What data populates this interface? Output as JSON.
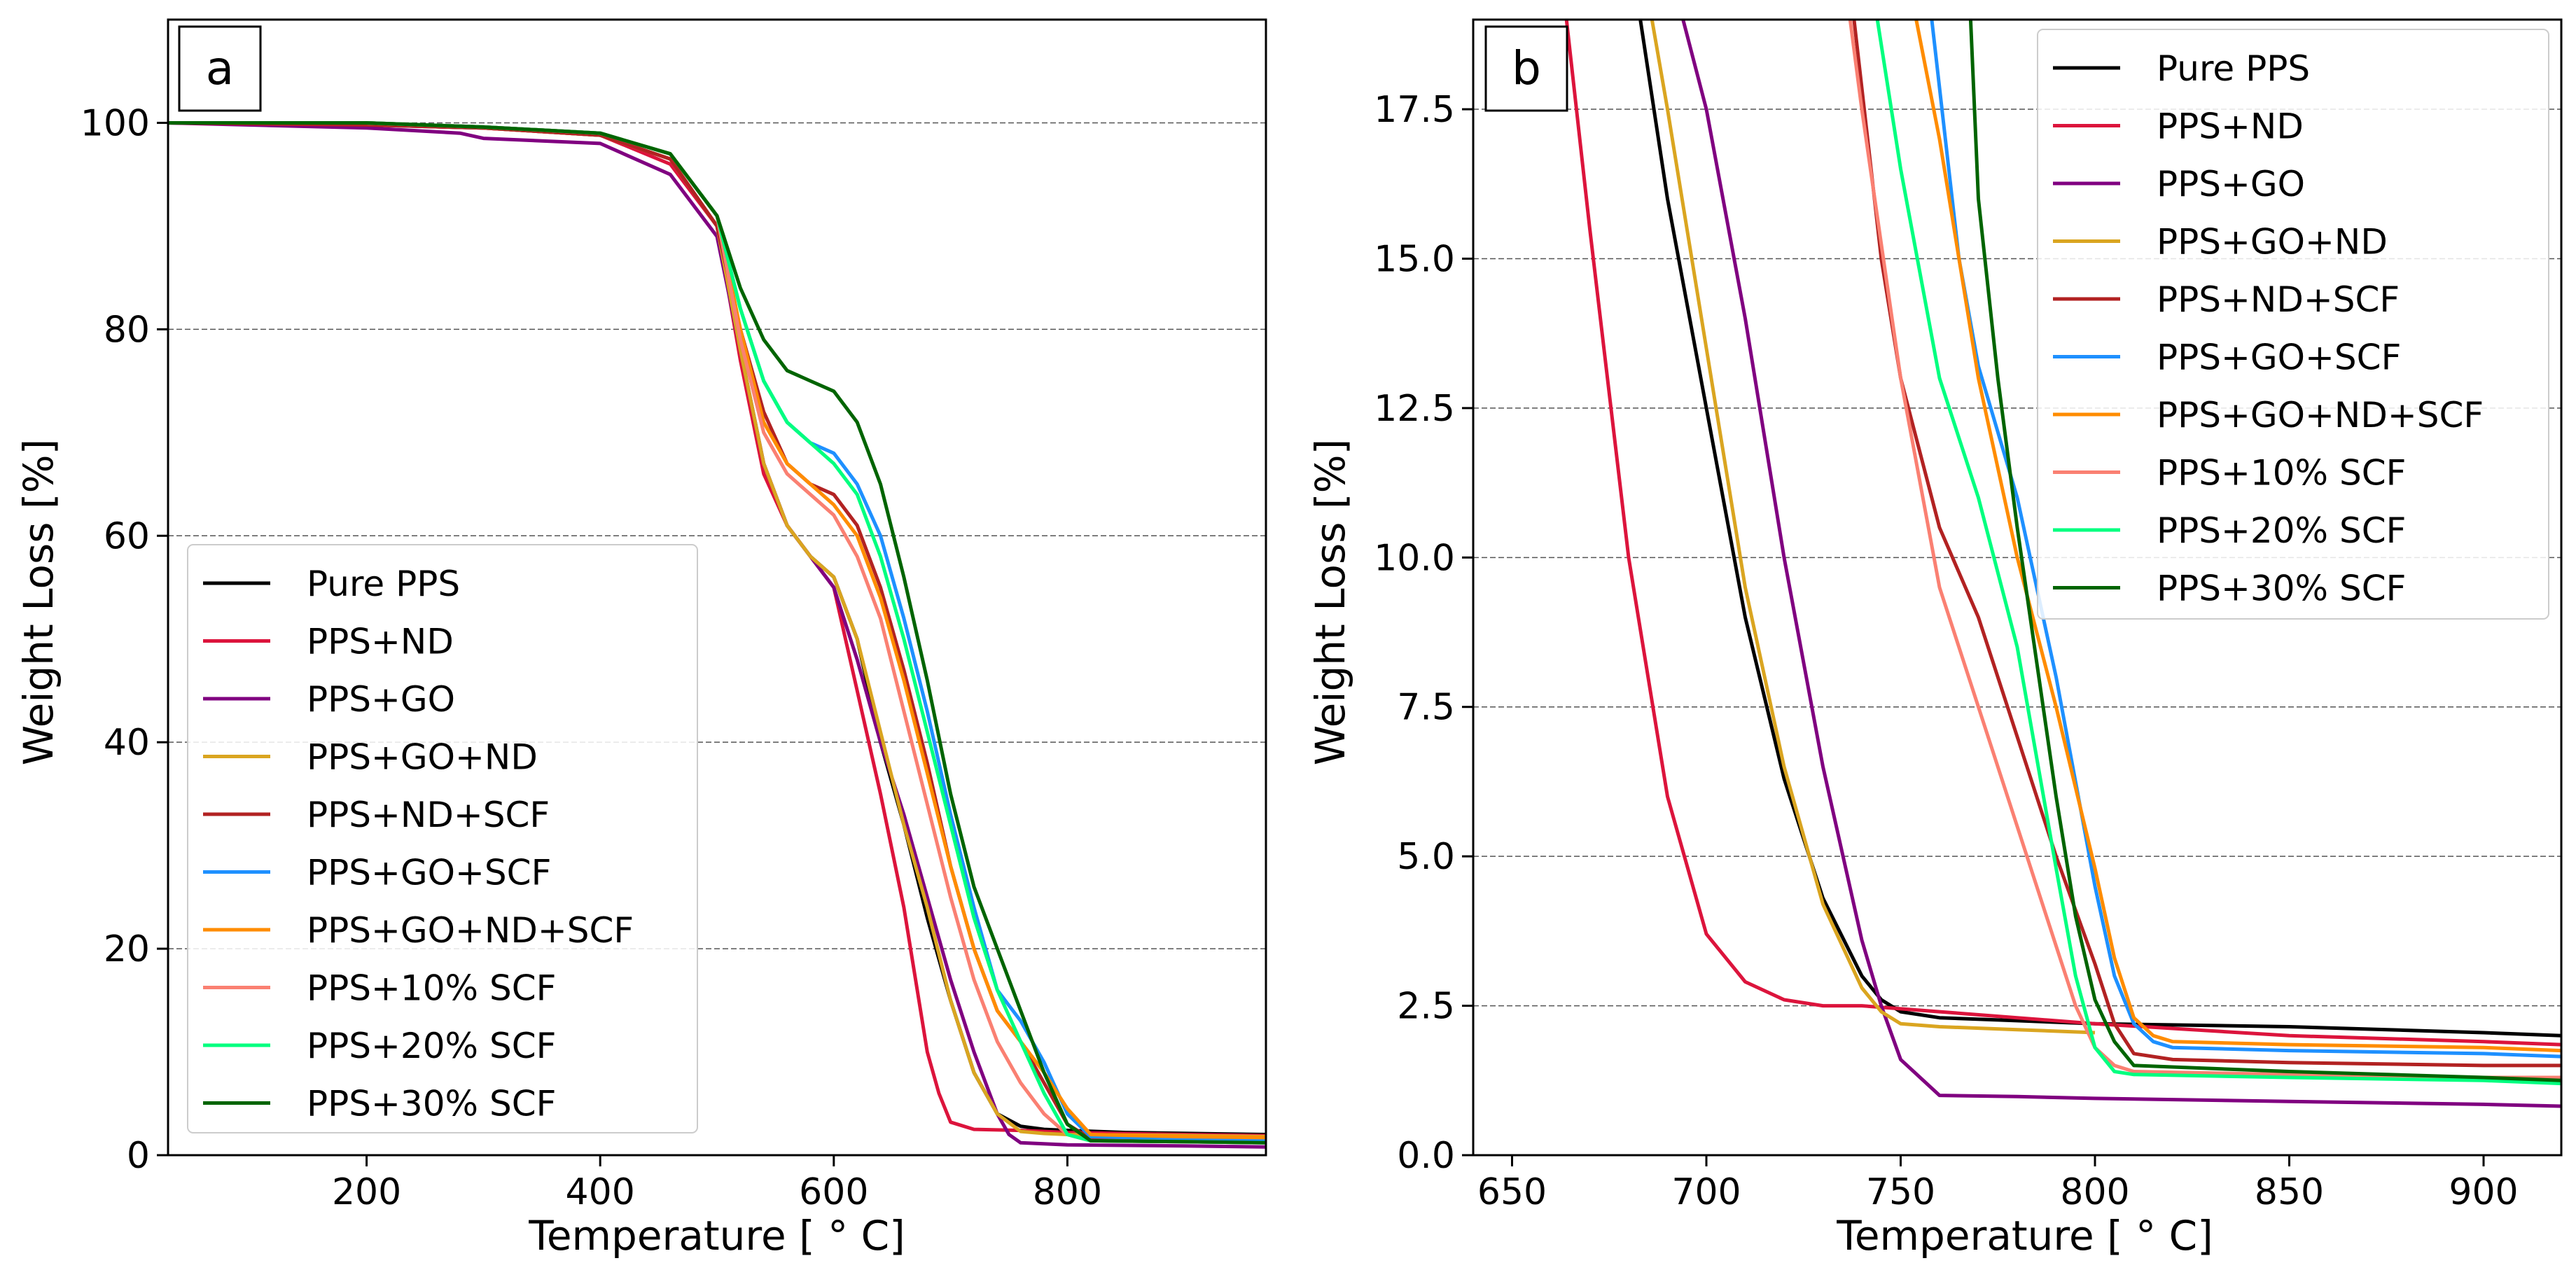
{
  "figure": {
    "colors": {
      "grid": "#555555",
      "frame": "#000000"
    }
  },
  "series_styles": [
    {
      "name": "Pure PPS",
      "color": "#000000"
    },
    {
      "name": "PPS+ND",
      "color": "#dc143c"
    },
    {
      "name": "PPS+GO",
      "color": "#800080"
    },
    {
      "name": "PPS+GO+ND",
      "color": "#daa520"
    },
    {
      "name": "PPS+ND+SCF",
      "color": "#b22222"
    },
    {
      "name": "PPS+GO+SCF",
      "color": "#1e90ff"
    },
    {
      "name": "PPS+GO+ND+SCF",
      "color": "#ff8c00"
    },
    {
      "name": "PPS+10% SCF",
      "color": "#fa8072"
    },
    {
      "name": "PPS+20% SCF",
      "color": "#00ff7f"
    },
    {
      "name": "PPS+30% SCF",
      "color": "#006400"
    }
  ],
  "chart_data": [
    {
      "type": "line",
      "panel_label": "a",
      "title": "",
      "xlabel": "Temperature [$^\\circ$C]",
      "xlabel_display": "Temperature [ ° C]",
      "ylabel": "Weight Loss [%]",
      "xlim": [
        30,
        970
      ],
      "ylim": [
        0,
        110
      ],
      "xticks": [
        200,
        400,
        600,
        800
      ],
      "xtick_labels": [
        "200",
        "400",
        "600",
        "800"
      ],
      "yticks": [
        0,
        20,
        40,
        60,
        80,
        100
      ],
      "ytick_labels": [
        "0",
        "20",
        "40",
        "60",
        "80",
        "100"
      ],
      "grid": "horizontal dashed",
      "legend_position": "lower-left",
      "legend": [
        "Pure PPS",
        "PPS+ND",
        "PPS+GO",
        "PPS+GO+ND",
        "PPS+ND+SCF",
        "PPS+GO+SCF",
        "PPS+GO+ND+SCF",
        "PPS+10% SCF",
        "PPS+20% SCF",
        "PPS+30% SCF"
      ],
      "series": [
        {
          "name": "Pure PPS",
          "x": [
            30,
            200,
            300,
            400,
            460,
            500,
            520,
            540,
            560,
            580,
            600,
            620,
            640,
            660,
            680,
            700,
            720,
            740,
            760,
            780,
            800,
            850,
            970
          ],
          "y": [
            100,
            99.8,
            99.5,
            98.8,
            96.5,
            90,
            78,
            67,
            61,
            58,
            56,
            50,
            40,
            32,
            23,
            15,
            8,
            4,
            2.8,
            2.5,
            2.4,
            2.2,
            2.0
          ]
        },
        {
          "name": "PPS+ND",
          "x": [
            30,
            200,
            300,
            400,
            460,
            500,
            520,
            540,
            560,
            580,
            600,
            620,
            640,
            660,
            680,
            690,
            700,
            720,
            760,
            800,
            900,
            970
          ],
          "y": [
            100,
            99.8,
            99.5,
            98.8,
            96,
            90,
            77,
            66,
            61,
            58,
            55,
            45,
            35,
            24,
            10,
            6,
            3.2,
            2.5,
            2.4,
            2.2,
            2.0,
            1.9
          ]
        },
        {
          "name": "PPS+GO",
          "x": [
            30,
            200,
            280,
            300,
            400,
            460,
            500,
            520,
            540,
            560,
            580,
            600,
            620,
            640,
            660,
            680,
            700,
            720,
            740,
            750,
            760,
            800,
            900,
            970
          ],
          "y": [
            100,
            99.5,
            99,
            98.5,
            98,
            95,
            89,
            78,
            67,
            61,
            58,
            55,
            48,
            40,
            33,
            25,
            17,
            10,
            4,
            2,
            1.2,
            1.0,
            0.9,
            0.8
          ]
        },
        {
          "name": "PPS+GO+ND",
          "x": [
            30,
            200,
            300,
            400,
            460,
            500,
            520,
            540,
            560,
            580,
            600,
            620,
            640,
            660,
            680,
            700,
            720,
            740,
            760,
            780,
            800,
            900,
            970
          ],
          "y": [
            100,
            100,
            99.5,
            98.8,
            96.5,
            90,
            78,
            67,
            61,
            58,
            56,
            50,
            41,
            32,
            24,
            15,
            8,
            4,
            2.3,
            2.1,
            2.0,
            1.9,
            1.8
          ]
        },
        {
          "name": "PPS+ND+SCF",
          "x": [
            30,
            200,
            300,
            400,
            460,
            500,
            520,
            540,
            560,
            580,
            600,
            620,
            640,
            660,
            680,
            700,
            720,
            740,
            760,
            780,
            800,
            820,
            900,
            970
          ],
          "y": [
            100,
            99.8,
            99.5,
            98.8,
            96.5,
            90,
            80,
            72,
            67,
            65,
            64,
            61,
            55,
            47,
            38,
            28,
            20,
            14,
            11,
            7,
            3,
            1.6,
            1.5,
            1.4
          ]
        },
        {
          "name": "PPS+GO+SCF",
          "x": [
            30,
            200,
            300,
            400,
            460,
            500,
            520,
            540,
            560,
            580,
            600,
            620,
            640,
            660,
            680,
            700,
            720,
            740,
            760,
            780,
            800,
            820,
            900,
            970
          ],
          "y": [
            100,
            100,
            99.6,
            99,
            97,
            91,
            82,
            75,
            71,
            69,
            68,
            65,
            60,
            52,
            43,
            33,
            24,
            16,
            13,
            9,
            4,
            1.8,
            1.6,
            1.5
          ]
        },
        {
          "name": "PPS+GO+ND+SCF",
          "x": [
            30,
            200,
            300,
            400,
            460,
            500,
            520,
            540,
            560,
            580,
            600,
            620,
            640,
            660,
            680,
            700,
            720,
            740,
            760,
            780,
            800,
            820,
            900,
            970
          ],
          "y": [
            100,
            100,
            99.6,
            99,
            97,
            91,
            80,
            71,
            67,
            65,
            63,
            60,
            54,
            46,
            37,
            28,
            20,
            14,
            11,
            8,
            4.5,
            2,
            1.8,
            1.7
          ]
        },
        {
          "name": "PPS+10% SCF",
          "x": [
            30,
            200,
            300,
            400,
            460,
            500,
            520,
            540,
            560,
            580,
            600,
            620,
            640,
            660,
            680,
            700,
            720,
            740,
            760,
            780,
            800,
            820,
            900,
            970
          ],
          "y": [
            100,
            100,
            99.6,
            99,
            97,
            91,
            79,
            70,
            66,
            64,
            62,
            58,
            52,
            43,
            34,
            25,
            17,
            11,
            7,
            4,
            2,
            1.4,
            1.3,
            1.2
          ]
        },
        {
          "name": "PPS+20% SCF",
          "x": [
            30,
            200,
            300,
            400,
            460,
            500,
            520,
            540,
            560,
            580,
            600,
            620,
            640,
            660,
            680,
            700,
            720,
            740,
            760,
            780,
            800,
            820,
            900,
            970
          ],
          "y": [
            100,
            100,
            99.6,
            99,
            97,
            91,
            82,
            75,
            71,
            69,
            67,
            64,
            58,
            50,
            41,
            32,
            23,
            16,
            11,
            6,
            2,
            1.4,
            1.3,
            1.2
          ]
        },
        {
          "name": "PPS+30% SCF",
          "x": [
            30,
            200,
            300,
            400,
            460,
            500,
            520,
            540,
            560,
            580,
            600,
            620,
            640,
            660,
            680,
            700,
            720,
            740,
            760,
            780,
            800,
            820,
            900,
            970
          ],
          "y": [
            100,
            100,
            99.6,
            99,
            97,
            91,
            84,
            79,
            76,
            75,
            74,
            71,
            65,
            56,
            46,
            35,
            26,
            20,
            14,
            8,
            3,
            1.4,
            1.3,
            1.2
          ]
        }
      ]
    },
    {
      "type": "line",
      "panel_label": "b",
      "title": "",
      "xlabel": "Temperature [$^\\circ$C]",
      "xlabel_display": "Temperature [ ° C]",
      "ylabel": "Weight Loss [%]",
      "xlim": [
        640,
        920
      ],
      "ylim": [
        0,
        19
      ],
      "xticks": [
        650,
        700,
        750,
        800,
        850,
        900
      ],
      "xtick_labels": [
        "650",
        "700",
        "750",
        "800",
        "850",
        "900"
      ],
      "yticks": [
        0,
        2.5,
        5,
        7.5,
        10,
        12.5,
        15,
        17.5
      ],
      "ytick_labels": [
        "0.0",
        "2.5",
        "5.0",
        "7.5",
        "10.0",
        "12.5",
        "15.0",
        "17.5"
      ],
      "grid": "horizontal dashed",
      "legend_position": "top-right",
      "legend": [
        "Pure PPS",
        "PPS+ND",
        "PPS+GO",
        "PPS+GO+ND",
        "PPS+ND+SCF",
        "PPS+GO+SCF",
        "PPS+GO+ND+SCF",
        "PPS+10% SCF",
        "PPS+20% SCF",
        "PPS+30% SCF"
      ],
      "series": [
        {
          "name": "Pure PPS",
          "x": [
            683,
            690,
            700,
            710,
            720,
            730,
            740,
            745,
            750,
            760,
            780,
            800,
            850,
            900,
            920
          ],
          "y": [
            19,
            16,
            12.5,
            9,
            6.3,
            4.3,
            3,
            2.6,
            2.4,
            2.3,
            2.25,
            2.2,
            2.15,
            2.05,
            2.0
          ]
        },
        {
          "name": "PPS+ND",
          "x": [
            664,
            670,
            680,
            690,
            700,
            710,
            720,
            730,
            740,
            760,
            780,
            800,
            850,
            900,
            920
          ],
          "y": [
            19,
            15.5,
            10,
            6,
            3.7,
            2.9,
            2.6,
            2.5,
            2.5,
            2.4,
            2.3,
            2.2,
            2.0,
            1.9,
            1.85
          ]
        },
        {
          "name": "PPS+GO",
          "x": [
            694,
            700,
            710,
            720,
            730,
            740,
            745,
            750,
            760,
            780,
            800,
            850,
            900,
            920
          ],
          "y": [
            19,
            17.5,
            14,
            10,
            6.5,
            3.6,
            2.5,
            1.6,
            1.0,
            0.98,
            0.95,
            0.9,
            0.85,
            0.82
          ]
        },
        {
          "name": "PPS+GO+ND",
          "x": [
            686,
            690,
            700,
            710,
            720,
            730,
            740,
            745,
            750,
            760,
            780,
            800
          ],
          "y": [
            19,
            17.5,
            13.5,
            9.5,
            6.5,
            4.2,
            2.8,
            2.4,
            2.2,
            2.15,
            2.1,
            2.05
          ]
        },
        {
          "name": "PPS+ND+SCF",
          "x": [
            738,
            745,
            750,
            760,
            770,
            780,
            790,
            800,
            805,
            810,
            820,
            850,
            900,
            920
          ],
          "y": [
            19,
            15,
            13,
            10.5,
            9,
            7,
            5,
            3.2,
            2.2,
            1.7,
            1.6,
            1.55,
            1.5,
            1.5
          ]
        },
        {
          "name": "PPS+GO+SCF",
          "x": [
            758,
            765,
            770,
            780,
            790,
            800,
            805,
            810,
            815,
            820,
            850,
            900,
            920
          ],
          "y": [
            19,
            15,
            13.2,
            11,
            8,
            4.5,
            3,
            2.2,
            1.9,
            1.8,
            1.75,
            1.7,
            1.65
          ]
        },
        {
          "name": "PPS+GO+ND+SCF",
          "x": [
            754,
            760,
            765,
            770,
            780,
            790,
            800,
            805,
            810,
            815,
            820,
            850,
            900,
            920
          ],
          "y": [
            19,
            17,
            15,
            13,
            10,
            7.5,
            4.8,
            3.3,
            2.3,
            2.0,
            1.9,
            1.85,
            1.8,
            1.75
          ]
        },
        {
          "name": "PPS+10% SCF",
          "x": [
            737,
            740,
            750,
            760,
            770,
            780,
            790,
            795,
            800,
            805,
            810,
            850,
            900,
            920
          ],
          "y": [
            19,
            17.5,
            13,
            9.5,
            7.5,
            5.5,
            3.5,
            2.5,
            1.8,
            1.5,
            1.4,
            1.35,
            1.3,
            1.3
          ]
        },
        {
          "name": "PPS+20% SCF",
          "x": [
            744,
            750,
            760,
            770,
            780,
            790,
            795,
            800,
            805,
            810,
            850,
            900,
            920
          ],
          "y": [
            19,
            16.5,
            13,
            11,
            8.5,
            4.8,
            3.0,
            1.8,
            1.4,
            1.35,
            1.3,
            1.25,
            1.2
          ]
        },
        {
          "name": "PPS+30% SCF",
          "x": [
            768,
            770,
            775,
            780,
            790,
            795,
            800,
            805,
            810,
            850,
            900,
            920
          ],
          "y": [
            19,
            16,
            13,
            10.5,
            6,
            4,
            2.6,
            1.9,
            1.5,
            1.4,
            1.3,
            1.25
          ]
        }
      ]
    }
  ]
}
